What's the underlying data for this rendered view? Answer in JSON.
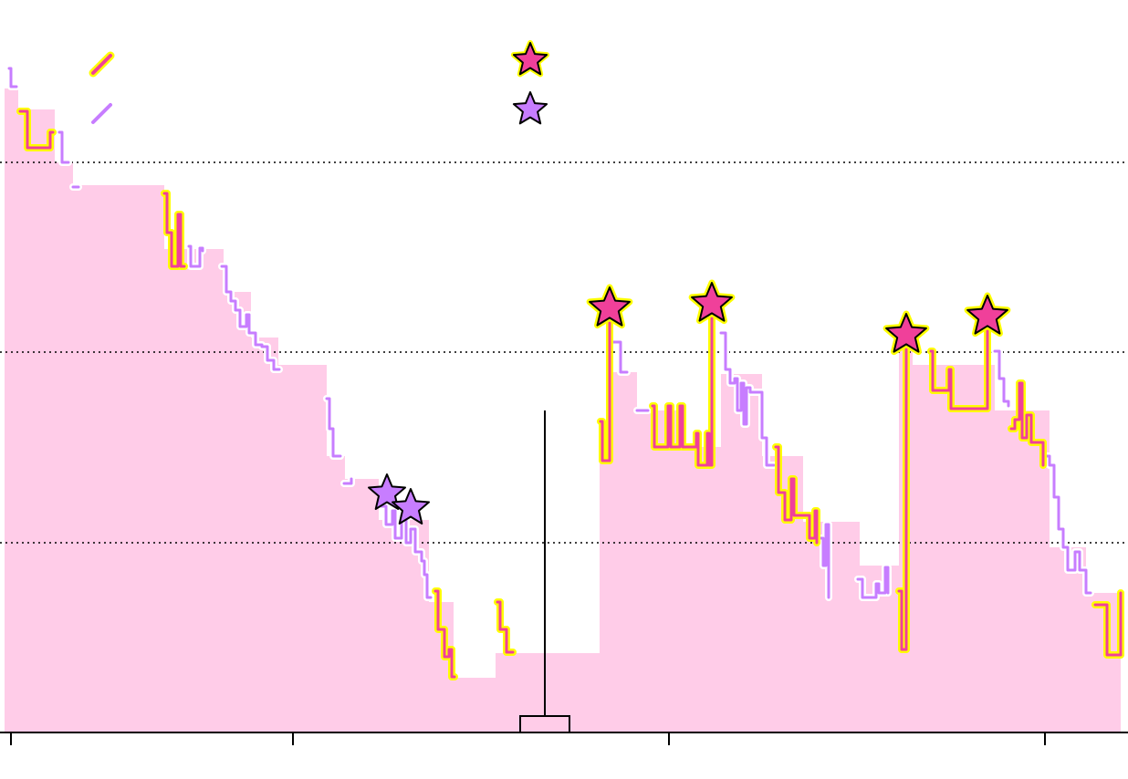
{
  "chart_data": {
    "type": "line",
    "xlim": [
      0,
      1236
    ],
    "xticks": [
      12,
      321,
      733,
      1145
    ],
    "ylim": [
      0,
      803
    ],
    "yticks": [
      208,
      417,
      625
    ],
    "grid": true,
    "legend": "top",
    "area": {
      "color": "#ffcce8",
      "x": [
        5,
        20,
        60,
        80,
        180,
        245,
        275,
        305,
        358,
        378,
        415,
        470,
        497,
        543,
        657,
        672,
        698,
        742,
        790,
        835,
        880,
        942,
        985,
        1000,
        1090,
        1150,
        1190,
        1228
      ],
      "values": [
        706,
        683,
        625,
        600,
        530,
        483,
        433,
        403,
        303,
        278,
        233,
        143,
        60,
        87,
        298,
        395,
        353,
        313,
        393,
        303,
        231,
        183,
        423,
        403,
        353,
        203,
        153,
        153
      ]
    },
    "series": [
      {
        "color": "#c77dff",
        "outline": "#ffffff",
        "x": [
          10,
          12,
          18,
          null,
          65,
          68,
          75,
          null,
          80,
          86,
          null,
          207,
          209,
          219,
          222,
          null,
          243,
          248,
          253,
          258,
          263,
          270,
          273,
          280,
          287,
          293,
          300,
          306,
          null,
          358,
          361,
          365,
          373,
          null,
          377,
          385,
          null,
          418,
          423,
          430,
          433,
          440,
          445,
          450,
          455,
          462,
          465,
          468,
          472,
          null,
          672,
          680,
          687,
          null,
          698,
          710,
          null,
          790,
          795,
          800,
          805,
          808,
          812,
          815,
          818,
          822,
          835,
          840,
          848,
          null,
          898,
          902,
          905,
          908,
          null,
          940,
          945,
          950,
          960,
          963,
          970,
          973,
          null,
          1090,
          1095,
          1100,
          1105,
          null,
          1145,
          1150,
          1155,
          1160,
          1165,
          1170,
          1178,
          1183,
          1190,
          1195
        ],
        "values": [
          728,
          708,
          708,
          null,
          658,
          625,
          625,
          null,
          598,
          598,
          null,
          533,
          511,
          531,
          528,
          null,
          511,
          483,
          473,
          463,
          445,
          458,
          438,
          425,
          423,
          408,
          398,
          398,
          null,
          366,
          333,
          303,
          303,
          null,
          273,
          278,
          null,
          248,
          228,
          243,
          213,
          238,
          208,
          223,
          198,
          188,
          173,
          148,
          148,
          null,
          428,
          395,
          395,
          null,
          353,
          353,
          null,
          438,
          398,
          383,
          388,
          353,
          383,
          338,
          378,
          373,
          323,
          293,
          293,
          null,
          213,
          183,
          228,
          148,
          null,
          168,
          148,
          148,
          163,
          153,
          181,
          153,
          null,
          418,
          388,
          363,
          358,
          null,
          303,
          293,
          258,
          223,
          203,
          178,
          198,
          178,
          153,
          153
        ],
        "marker_x": [
          424,
          450
        ],
        "marker_values": [
          262,
          246
        ]
      },
      {
        "color": "#f0409a",
        "outline": "#ffff00",
        "x": [
          22,
          30,
          55,
          58,
          null,
          180,
          183,
          188,
          195,
          198,
          202,
          null,
          477,
          480,
          487,
          492,
          495,
          498,
          null,
          545,
          548,
          555,
          562,
          null,
          658,
          660,
          668,
          670,
          null,
          715,
          717,
          732,
          735,
          745,
          748,
          758,
          763,
          765,
          775,
          777,
          780,
          782,
          null,
          850,
          853,
          860,
          867,
          870,
          883,
          887,
          893,
          895,
          null,
          985,
          988,
          993,
          995,
          null,
          1020,
          1022,
          1040,
          1042,
          1080,
          1082,
          1084,
          null,
          1108,
          1112,
          1117,
          1120,
          1125,
          1130,
          1140,
          1143,
          null,
          1200,
          1213,
          1228
        ],
        "values": [
          681,
          641,
          658,
          658,
          null,
          591,
          548,
          511,
          568,
          511,
          511,
          null,
          155,
          113,
          83,
          91,
          61,
          61,
          null,
          143,
          113,
          88,
          88,
          null,
          341,
          298,
          458,
          458,
          null,
          358,
          313,
          358,
          313,
          358,
          313,
          313,
          328,
          293,
          328,
          293,
          468,
          468,
          null,
          313,
          263,
          233,
          278,
          238,
          238,
          213,
          243,
          208,
          null,
          155,
          91,
          436,
          436,
          null,
          418,
          375,
          398,
          355,
          355,
          456,
          456,
          null,
          333,
          343,
          383,
          323,
          348,
          318,
          318,
          293,
          null,
          140,
          85,
          153
        ],
        "marker_x": [
          668,
          780,
          993,
          1082
        ],
        "marker_values": [
          465,
          470,
          436,
          456
        ]
      }
    ],
    "box": {
      "x": 597,
      "low": 0,
      "q1": 0,
      "q3": 18,
      "high": 353
    }
  }
}
